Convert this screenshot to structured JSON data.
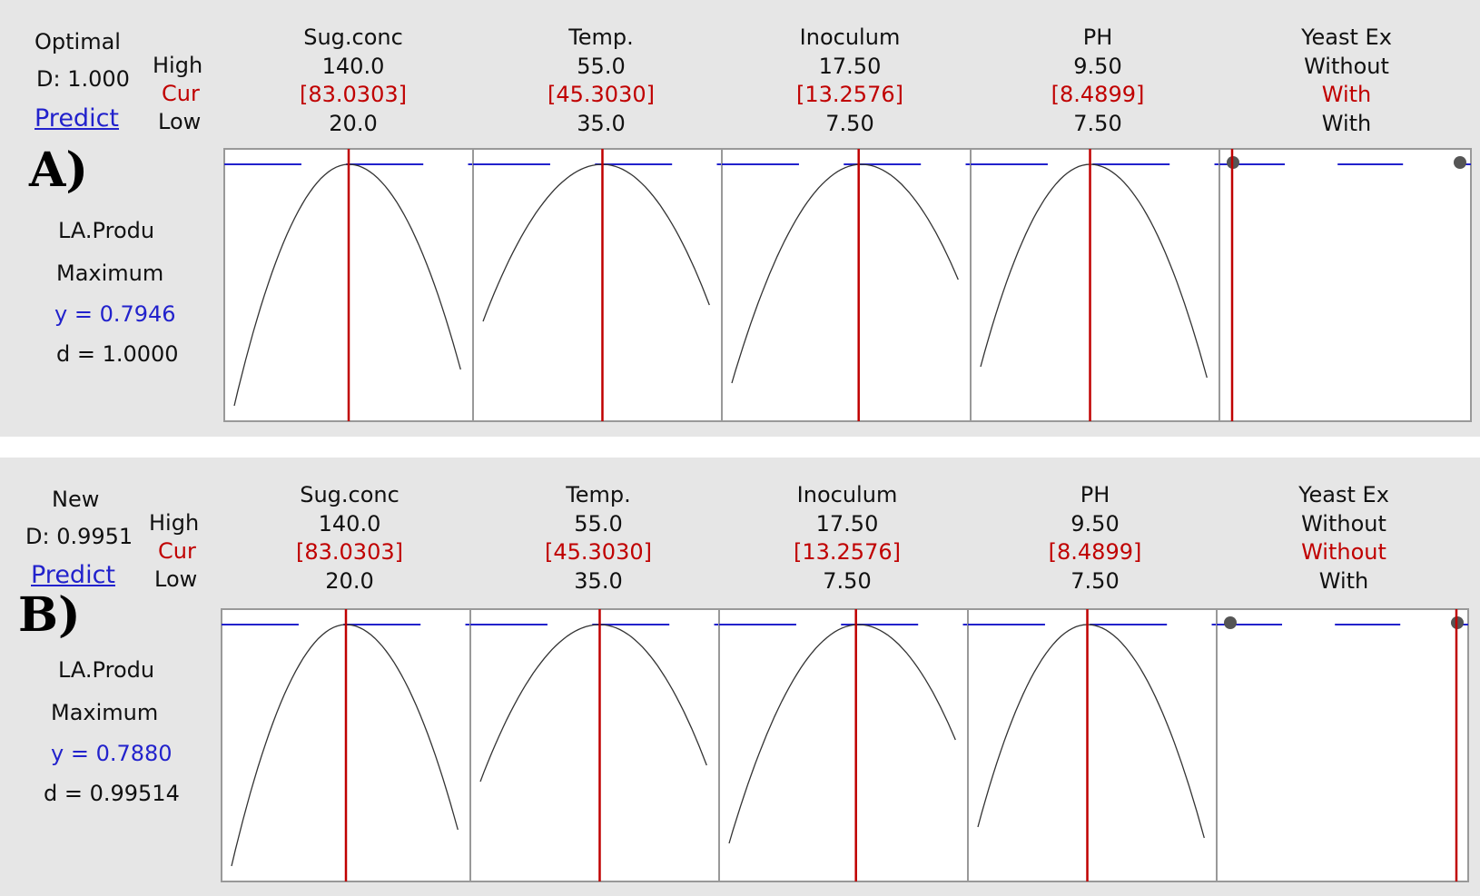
{
  "panels": [
    {
      "label": "A)",
      "header": {
        "line1": "Optimal",
        "line2": "D: 1.000",
        "predict": "Predict"
      },
      "row_labels": {
        "high": "High",
        "cur": "Cur",
        "low": "Low"
      },
      "factors": [
        {
          "name": "Sug.conc",
          "high": "140.0",
          "cur": "[83.0303]",
          "low": "20.0"
        },
        {
          "name": "Temp.",
          "high": "55.0",
          "cur": "[45.3030]",
          "low": "35.0"
        },
        {
          "name": "Inoculum",
          "high": "17.50",
          "cur": "[13.2576]",
          "low": "7.50"
        },
        {
          "name": "PH",
          "high": "9.50",
          "cur": "[8.4899]",
          "low": "7.50"
        },
        {
          "name": "Yeast Ex",
          "high": "Without",
          "cur": "With",
          "low": "With"
        }
      ],
      "response": {
        "name": "LA.Produ",
        "goal": "Maximum",
        "y": "y = 0.7946",
        "d": "d = 1.0000"
      }
    },
    {
      "label": "B)",
      "header": {
        "line1": "New",
        "line2": "D: 0.9951",
        "predict": "Predict"
      },
      "row_labels": {
        "high": "High",
        "cur": "Cur",
        "low": "Low"
      },
      "factors": [
        {
          "name": "Sug.conc",
          "high": "140.0",
          "cur": "[83.0303]",
          "low": "20.0"
        },
        {
          "name": "Temp.",
          "high": "55.0",
          "cur": "[45.3030]",
          "low": "35.0"
        },
        {
          "name": "Inoculum",
          "high": "17.50",
          "cur": "[13.2576]",
          "low": "7.50"
        },
        {
          "name": "PH",
          "high": "9.50",
          "cur": "[8.4899]",
          "low": "7.50"
        },
        {
          "name": "Yeast Ex",
          "high": "Without",
          "cur": "Without",
          "low": "With"
        }
      ],
      "response": {
        "name": "LA.Produ",
        "goal": "Maximum",
        "y": "y = 0.7880",
        "d": "d = 0.99514"
      }
    }
  ],
  "colors": {
    "cur": "#c00000",
    "target": "#2222cc",
    "curve": "#333333",
    "frame": "#999999"
  }
}
